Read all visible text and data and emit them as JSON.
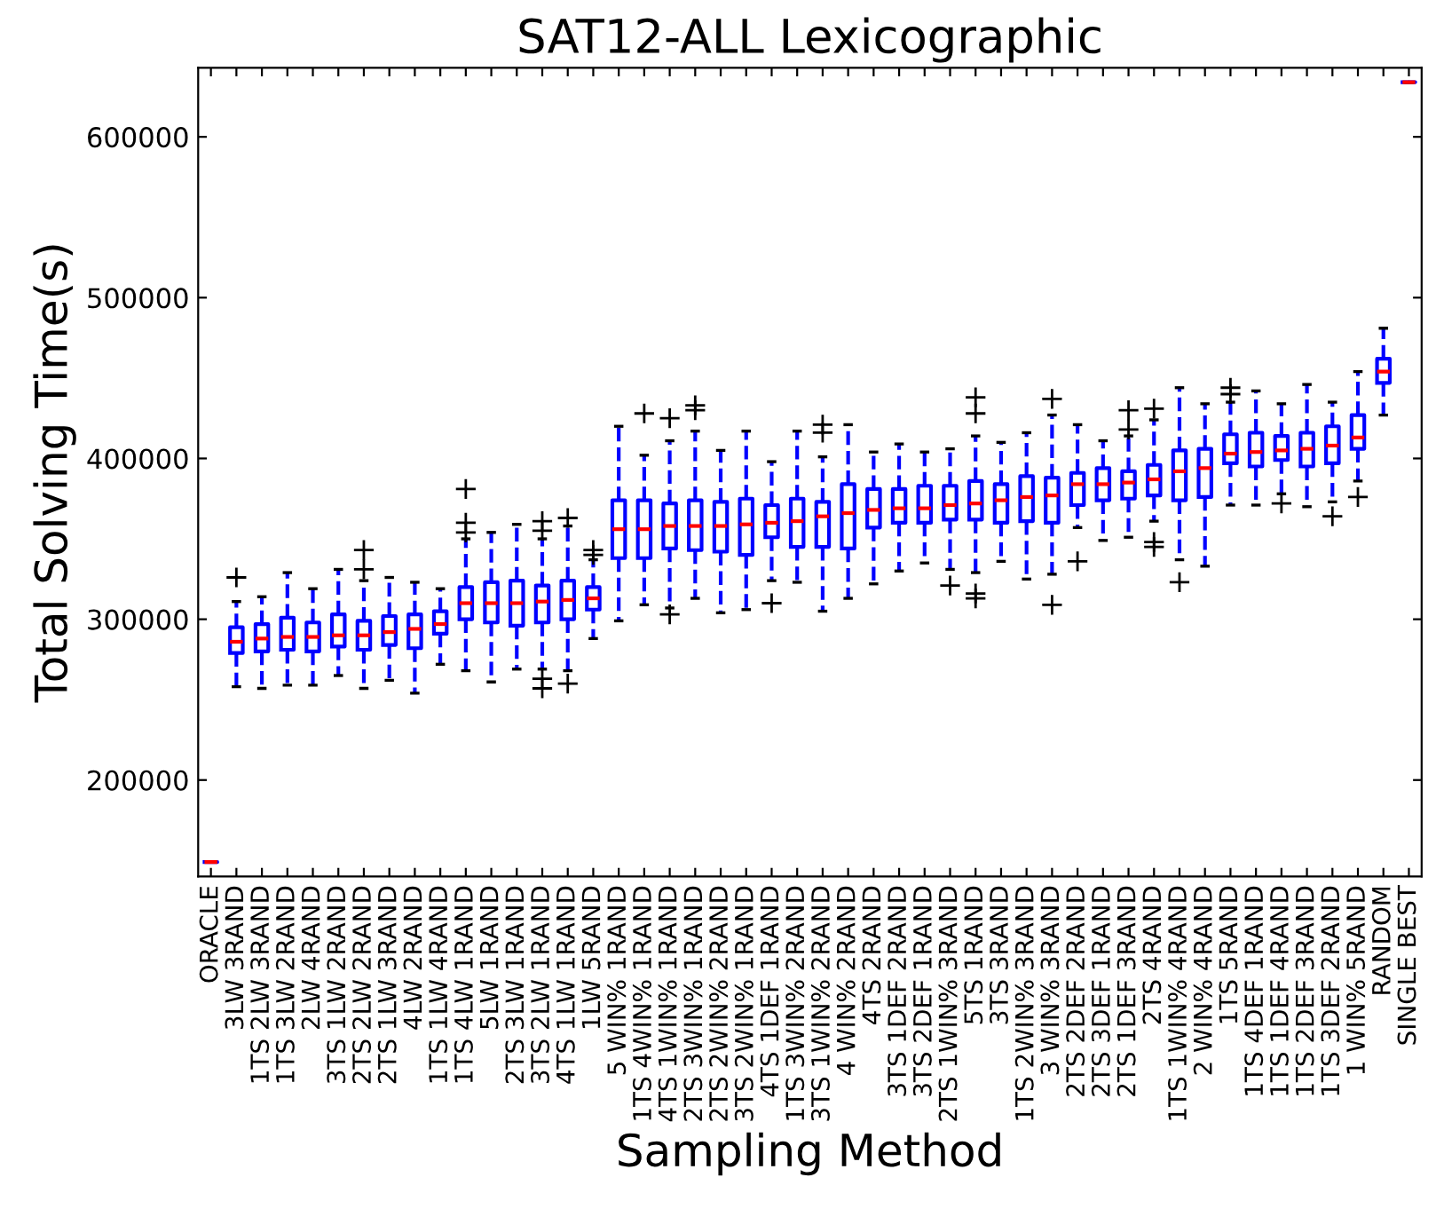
{
  "chart_data": {
    "type": "box",
    "title": "SAT12-ALL Lexicographic",
    "xlabel": "Sampling Method",
    "ylabel": "Total Solving Time(s)",
    "categories": [
      "ORACLE",
      "3LW 3RAND",
      "1TS 2LW 3RAND",
      "1TS 3LW 2RAND",
      "2LW 4RAND",
      "3TS 1LW 2RAND",
      "2TS 2LW 2RAND",
      "2TS 1LW 3RAND",
      "4LW 2RAND",
      "1TS 1LW 4RAND",
      "1TS 4LW 1RAND",
      "5LW 1RAND",
      "2TS 3LW 1RAND",
      "3TS 2LW 1RAND",
      "4TS 1LW 1RAND",
      "1LW 5RAND",
      "5 WIN% 1RAND",
      "1TS 4WIN% 1RAND",
      "4TS 1WIN% 1RAND",
      "2TS 3WIN% 1RAND",
      "2TS 2WIN% 2RAND",
      "3TS 2WIN% 1RAND",
      "4TS 1DEF 1RAND",
      "1TS 3WIN% 2RAND",
      "3TS 1WIN% 2RAND",
      "4 WIN% 2RAND",
      "4TS 2RAND",
      "3TS 1DEF 2RAND",
      "3TS 2DEF 1RAND",
      "2TS 1WIN% 3RAND",
      "5TS 1RAND",
      "3TS 3RAND",
      "1TS 2WIN% 3RAND",
      "3 WIN% 3RAND",
      "2TS 2DEF 2RAND",
      "2TS 3DEF 1RAND",
      "2TS 1DEF 3RAND",
      "2TS 4RAND",
      "1TS 1WIN% 4RAND",
      "2 WIN% 4RAND",
      "1TS 5RAND",
      "1TS 4DEF 1RAND",
      "1TS 1DEF 4RAND",
      "1TS 2DEF 3RAND",
      "1TS 3DEF 2RAND",
      "1 WIN% 5RAND",
      "RANDOM",
      "SINGLE BEST"
    ],
    "color": "#0000ff",
    "boxes": [
      {
        "low": 149000,
        "q1": 149000,
        "median": 149000,
        "q3": 149000,
        "high": 149000
      },
      {
        "low": 258000,
        "q1": 279000,
        "median": 286000,
        "q3": 295000,
        "high": 311000,
        "outliers": [
          326000
        ]
      },
      {
        "low": 257000,
        "q1": 280000,
        "median": 288000,
        "q3": 297000,
        "high": 314000
      },
      {
        "low": 259000,
        "q1": 281000,
        "median": 289000,
        "q3": 301000,
        "high": 329000
      },
      {
        "low": 259000,
        "q1": 280000,
        "median": 289000,
        "q3": 298000,
        "high": 319000
      },
      {
        "low": 265000,
        "q1": 283000,
        "median": 290000,
        "q3": 303000,
        "high": 331000
      },
      {
        "low": 257000,
        "q1": 281000,
        "median": 290000,
        "q3": 299000,
        "high": 324000,
        "outliers": [
          331000,
          343000
        ]
      },
      {
        "low": 262000,
        "q1": 284000,
        "median": 292000,
        "q3": 302000,
        "high": 326000
      },
      {
        "low": 254000,
        "q1": 282000,
        "median": 294000,
        "q3": 303000,
        "high": 323000
      },
      {
        "low": 272000,
        "q1": 291000,
        "median": 297000,
        "q3": 305000,
        "high": 319000
      },
      {
        "low": 268000,
        "q1": 300000,
        "median": 310000,
        "q3": 320000,
        "high": 350000,
        "outliers": [
          354000,
          360000,
          381000
        ]
      },
      {
        "low": 261000,
        "q1": 298000,
        "median": 310000,
        "q3": 323000,
        "high": 354000
      },
      {
        "low": 269000,
        "q1": 296000,
        "median": 310000,
        "q3": 324000,
        "high": 359000
      },
      {
        "low": 269000,
        "q1": 298000,
        "median": 311000,
        "q3": 321000,
        "high": 350000,
        "outliers": [
          257000,
          263000,
          355000,
          361000
        ]
      },
      {
        "low": 268000,
        "q1": 300000,
        "median": 312000,
        "q3": 324000,
        "high": 358000,
        "outliers": [
          260000,
          363000
        ]
      },
      {
        "low": 288000,
        "q1": 306000,
        "median": 313000,
        "q3": 320000,
        "high": 337000,
        "outliers": [
          340000,
          343000
        ]
      },
      {
        "low": 299000,
        "q1": 338000,
        "median": 356000,
        "q3": 374000,
        "high": 420000
      },
      {
        "low": 309000,
        "q1": 338000,
        "median": 356000,
        "q3": 374000,
        "high": 402000,
        "outliers": [
          428000
        ]
      },
      {
        "low": 307000,
        "q1": 344000,
        "median": 358000,
        "q3": 372000,
        "high": 411000,
        "outliers": [
          303000,
          425000
        ]
      },
      {
        "low": 313000,
        "q1": 343000,
        "median": 358000,
        "q3": 374000,
        "high": 417000,
        "outliers": [
          430000,
          433000
        ]
      },
      {
        "low": 304000,
        "q1": 342000,
        "median": 358000,
        "q3": 373000,
        "high": 405000
      },
      {
        "low": 306000,
        "q1": 340000,
        "median": 359000,
        "q3": 375000,
        "high": 417000
      },
      {
        "low": 324000,
        "q1": 351000,
        "median": 360000,
        "q3": 371000,
        "high": 398000,
        "outliers": [
          310000
        ]
      },
      {
        "low": 323000,
        "q1": 345000,
        "median": 361000,
        "q3": 375000,
        "high": 417000
      },
      {
        "low": 305000,
        "q1": 345000,
        "median": 364000,
        "q3": 373000,
        "high": 401000,
        "outliers": [
          416000,
          421000
        ]
      },
      {
        "low": 313000,
        "q1": 344000,
        "median": 366000,
        "q3": 384000,
        "high": 421000
      },
      {
        "low": 322000,
        "q1": 357000,
        "median": 368000,
        "q3": 381000,
        "high": 404000
      },
      {
        "low": 330000,
        "q1": 360000,
        "median": 369000,
        "q3": 381000,
        "high": 409000
      },
      {
        "low": 335000,
        "q1": 360000,
        "median": 369000,
        "q3": 383000,
        "high": 404000
      },
      {
        "low": 331000,
        "q1": 362000,
        "median": 371000,
        "q3": 383000,
        "high": 406000,
        "outliers": [
          321000
        ]
      },
      {
        "low": 329000,
        "q1": 362000,
        "median": 372000,
        "q3": 386000,
        "high": 414000,
        "outliers": [
          313000,
          316000,
          428000,
          438000
        ]
      },
      {
        "low": 336000,
        "q1": 360000,
        "median": 374000,
        "q3": 384000,
        "high": 410000
      },
      {
        "low": 325000,
        "q1": 361000,
        "median": 376000,
        "q3": 389000,
        "high": 416000
      },
      {
        "low": 328000,
        "q1": 360000,
        "median": 377000,
        "q3": 388000,
        "high": 427000,
        "outliers": [
          309000,
          437000
        ]
      },
      {
        "low": 357000,
        "q1": 371000,
        "median": 384000,
        "q3": 391000,
        "high": 421000,
        "outliers": [
          336000
        ]
      },
      {
        "low": 349000,
        "q1": 374000,
        "median": 384000,
        "q3": 394000,
        "high": 411000
      },
      {
        "low": 351000,
        "q1": 375000,
        "median": 385000,
        "q3": 392000,
        "high": 414000,
        "outliers": [
          418000,
          430000
        ]
      },
      {
        "low": 361000,
        "q1": 377000,
        "median": 387000,
        "q3": 396000,
        "high": 424000,
        "outliers": [
          345000,
          348000,
          431000
        ]
      },
      {
        "low": 337000,
        "q1": 374000,
        "median": 392000,
        "q3": 405000,
        "high": 444000,
        "outliers": [
          323000
        ]
      },
      {
        "low": 333000,
        "q1": 376000,
        "median": 394000,
        "q3": 406000,
        "high": 434000
      },
      {
        "low": 371000,
        "q1": 397000,
        "median": 403000,
        "q3": 415000,
        "high": 435000,
        "outliers": [
          440000,
          444000
        ]
      },
      {
        "low": 371000,
        "q1": 395000,
        "median": 404000,
        "q3": 416000,
        "high": 442000
      },
      {
        "low": 378000,
        "q1": 399000,
        "median": 405000,
        "q3": 414000,
        "high": 434000,
        "outliers": [
          372000
        ]
      },
      {
        "low": 370000,
        "q1": 395000,
        "median": 406000,
        "q3": 416000,
        "high": 446000
      },
      {
        "low": 373000,
        "q1": 397000,
        "median": 408000,
        "q3": 420000,
        "high": 435000,
        "outliers": [
          364000
        ]
      },
      {
        "low": 386000,
        "q1": 406000,
        "median": 413000,
        "q3": 427000,
        "high": 454000,
        "outliers": [
          376000
        ]
      },
      {
        "low": 427000,
        "q1": 447000,
        "median": 454000,
        "q3": 462000,
        "high": 481000
      },
      {
        "low": 634000,
        "q1": 634000,
        "median": 634000,
        "q3": 634000,
        "high": 634000
      }
    ],
    "ylim": [
      140000,
      643000
    ],
    "yticks": [
      200000,
      300000,
      400000,
      500000,
      600000
    ],
    "grid": false
  }
}
